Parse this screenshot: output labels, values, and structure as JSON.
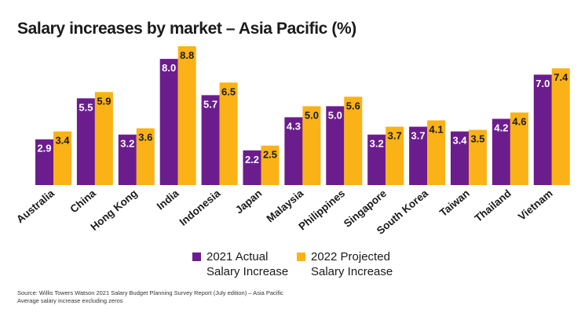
{
  "title": "Salary increases by market – Asia Pacific (%)",
  "chart_data": {
    "type": "bar",
    "title": "Salary increases by market – Asia Pacific (%)",
    "categories": [
      "Australia",
      "China",
      "Hong Kong",
      "India",
      "Indonesia",
      "Japan",
      "Malaysia",
      "Philippines",
      "Singapore",
      "South Korea",
      "Taiwan",
      "Thailand",
      "Vietnam"
    ],
    "series": [
      {
        "name": "2021 Actual Salary Increase",
        "color": "#6b1d8e",
        "values": [
          2.9,
          5.5,
          3.2,
          8.0,
          5.7,
          2.2,
          4.3,
          5.0,
          3.2,
          3.7,
          3.4,
          4.2,
          7.0
        ],
        "labels": [
          "2.9",
          "5.5",
          "3.2",
          "8.0",
          "5.7",
          "2.2",
          "4.3",
          "5.0",
          "3.2",
          "3.7",
          "3.4",
          "4.2",
          "7.0"
        ]
      },
      {
        "name": "2022 Projected Salary Increase",
        "color": "#fbb217",
        "values": [
          3.4,
          5.9,
          3.6,
          8.8,
          6.5,
          2.5,
          5.0,
          5.6,
          3.7,
          4.1,
          3.5,
          4.6,
          7.4
        ],
        "labels": [
          "3.4",
          "5.9",
          "3.6",
          "8.8",
          "6.5",
          "2.5",
          "5.0",
          "5.6",
          "3.7",
          "4.1",
          "3.5",
          "4.6",
          "7.4"
        ]
      }
    ],
    "xlabel": "",
    "ylabel": "",
    "ylim": [
      0,
      8.8
    ],
    "grid": false,
    "legend_position": "bottom-center"
  },
  "legend": [
    {
      "line1": "2021 Actual",
      "line2": "Salary Increase",
      "color": "#6b1d8e"
    },
    {
      "line1": "2022 Projected",
      "line2": "Salary Increase",
      "color": "#fbb217"
    }
  ],
  "source": {
    "line1": "Source: Willis Towers Watson 2021 Salary Budget Planning Survey Report (July edition) – Asia Pacific",
    "line2": "Average salary increase excluding zeros"
  }
}
